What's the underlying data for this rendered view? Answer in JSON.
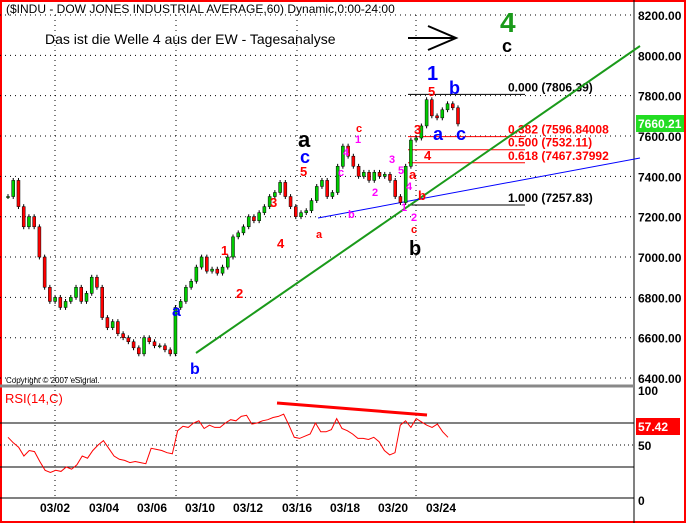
{
  "header": {
    "title": "($INDU - DOW JONES INDUSTRIAL AVERAGE,60) Dynamic,0:00-24:00",
    "annotation_text": "Das ist die Welle 4 aus der EW - Tagesanalyse",
    "copyright": "Copyright © 2007 eSignal."
  },
  "colors": {
    "border": "#ff0000",
    "up": "#00cc00",
    "down": "#ff0000",
    "trend_green": "#1a9a1a",
    "trend_blue": "#0000ff",
    "fib": "#ff0000",
    "rsi": "#ff0000"
  },
  "chart_data": [
    {
      "type": "candlestick",
      "title": "($INDU - DOW JONES INDUSTRIAL AVERAGE,60) Dynamic,0:00-24:00",
      "ylim": [
        6400,
        8200
      ],
      "yticks": [
        "8200.00",
        "8000.00",
        "7800.00",
        "7600.00",
        "7400.00",
        "7200.00",
        "7000.00",
        "6800.00",
        "6600.00",
        "6400.00"
      ],
      "xticks": [
        "03/02",
        "03/04",
        "03/06",
        "03/10",
        "03/12",
        "03/16",
        "03/18",
        "03/20",
        "03/24"
      ],
      "grid": true,
      "last_value": "7660.21",
      "closes": [
        7300,
        7380,
        7250,
        7150,
        7200,
        7150,
        7000,
        6850,
        6780,
        6800,
        6750,
        6780,
        6800,
        6850,
        6780,
        6820,
        6900,
        6850,
        6700,
        6650,
        6680,
        6620,
        6600,
        6580,
        6550,
        6520,
        6600,
        6580,
        6560,
        6560,
        6540,
        6520,
        6750,
        6780,
        6850,
        6880,
        6950,
        7000,
        6930,
        6940,
        6920,
        6950,
        7000,
        7100,
        7120,
        7150,
        7200,
        7180,
        7220,
        7250,
        7300,
        7320,
        7370,
        7300,
        7250,
        7200,
        7220,
        7230,
        7280,
        7350,
        7380,
        7300,
        7320,
        7450,
        7550,
        7500,
        7450,
        7400,
        7420,
        7380,
        7420,
        7400,
        7410,
        7380,
        7300,
        7270,
        7450,
        7580,
        7590,
        7650,
        7780,
        7700,
        7690,
        7730,
        7760,
        7740,
        7660
      ],
      "fibonacci": [
        {
          "label": "0.000 (7806.39)",
          "value": 7806.39
        },
        {
          "label": "0.382 (7596.84008",
          "value": 7596.84
        },
        {
          "label": "0.500 (7532.11)",
          "value": 7532.11
        },
        {
          "label": "0.618 (7467.37992",
          "value": 7467.38
        },
        {
          "label": "1.000 (7257.83)",
          "value": 7257.83
        }
      ],
      "wave_labels": [
        "a",
        "b",
        "1",
        "2",
        "3",
        "4",
        "5",
        "a",
        "c",
        "a",
        "b",
        "c",
        "1",
        "2",
        "3",
        "4",
        "5",
        "a",
        "b",
        "1",
        "2",
        "3",
        "4",
        "5",
        "c",
        "a",
        "b",
        "c",
        "1",
        "b",
        "4",
        "c"
      ]
    },
    {
      "type": "line",
      "title": "RSI(14,C)",
      "ylim": [
        0,
        100
      ],
      "yticks": [
        "100",
        "50",
        "0"
      ],
      "levels": [
        70,
        30
      ],
      "last_value": "57.42",
      "values": [
        57,
        52,
        48,
        40,
        45,
        44,
        35,
        27,
        25,
        27,
        26,
        30,
        28,
        32,
        40,
        38,
        45,
        50,
        54,
        47,
        40,
        37,
        36,
        34,
        35,
        34,
        33,
        47,
        46,
        45,
        43,
        42,
        63,
        67,
        66,
        70,
        72,
        65,
        68,
        66,
        66,
        70,
        73,
        72,
        76,
        77,
        69,
        70,
        72,
        73,
        75,
        76,
        78,
        68,
        57,
        56,
        58,
        60,
        70,
        62,
        62,
        64,
        74,
        65,
        63,
        60,
        56,
        56,
        55,
        57,
        53,
        45,
        41,
        43,
        68,
        72,
        66,
        74,
        71,
        68,
        66,
        69,
        62,
        57
      ]
    }
  ]
}
